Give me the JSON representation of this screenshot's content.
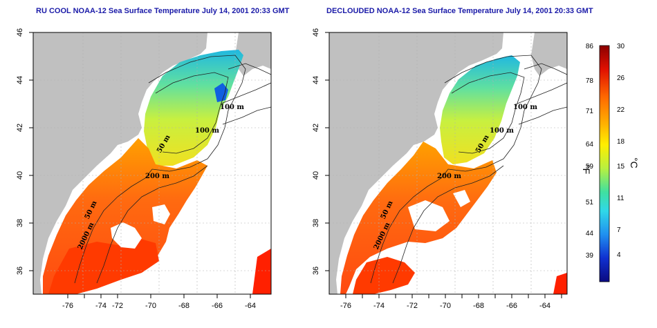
{
  "panels": [
    {
      "title": "RU COOL NOAA-12 Sea Surface Temperature July 14, 2001 20:33 GMT",
      "contour_labels": [
        "100 m",
        "100 m",
        "50 m",
        "200 m",
        "50 m",
        "2000 m"
      ]
    },
    {
      "title": "DECLOUDED NOAA-12 Sea Surface Temperature July 14, 2001 20:33 GMT",
      "contour_labels": [
        "100 m",
        "100 m",
        "50 m",
        "200 m",
        "50 m",
        "2000 m"
      ]
    }
  ],
  "axes": {
    "x_ticks": [
      "-76",
      "-74",
      "-72",
      "-70",
      "-68",
      "-66",
      "-64"
    ],
    "y_ticks": [
      "46",
      "44",
      "42",
      "40",
      "38",
      "36"
    ]
  },
  "colorbar": {
    "fahrenheit_ticks": [
      "86",
      "78",
      "71",
      "64",
      "59",
      "51",
      "44",
      "39"
    ],
    "celsius_ticks": [
      "30",
      "26",
      "22",
      "18",
      "15",
      "11",
      "7",
      "4"
    ],
    "fahrenheit_unit": "°F",
    "celsius_unit": "°C",
    "colors": [
      "#8b0000",
      "#e01000",
      "#ff6a00",
      "#ffb000",
      "#ffee00",
      "#b8f040",
      "#40e0a0",
      "#30d8e8",
      "#2090f0",
      "#1030d0",
      "#0a0a80"
    ]
  },
  "colors": {
    "land": "#c0c0c0",
    "grid": "#b0b0b0"
  }
}
